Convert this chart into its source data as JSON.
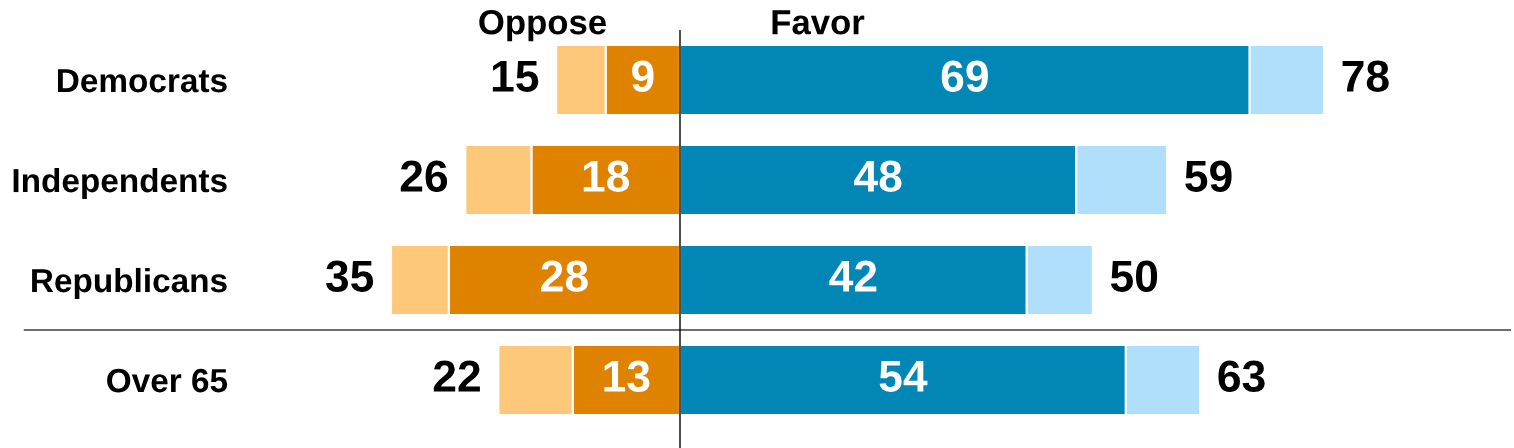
{
  "chart_data": {
    "type": "bar",
    "orientation": "horizontal",
    "stacked": true,
    "categories": [
      "Democrats",
      "Independents",
      "Republicans",
      "Over 65"
    ],
    "series": [
      {
        "color": "#df8200",
        "values": [
          -9,
          -18,
          -28,
          -13
        ]
      },
      {
        "color": "#fec87a",
        "values": [
          -6,
          -8,
          -7,
          -9
        ]
      },
      {
        "color": "#0286b6",
        "values": [
          69,
          48,
          42,
          54
        ],
        "value_labels": [
          "69",
          "48",
          "42",
          "54"
        ]
      },
      {
        "color": "#b0dffc",
        "values": [
          9,
          11,
          8,
          9
        ]
      }
    ],
    "tick_labels": "y",
    "ref_lines": [
      {
        "axis": "x",
        "value": 0,
        "color": "#000000"
      }
    ],
    "annotations": [
      "Oppose",
      "Favor",
      {
        "text": "9",
        "x": -9,
        "y": "Democrats"
      },
      {
        "text": "15",
        "x": -15,
        "y": "Democrats"
      },
      {
        "text": "78",
        "x": 78,
        "y": "Democrats"
      },
      {
        "text": "18",
        "x": -18,
        "y": "Independents"
      },
      {
        "text": "26",
        "x": -26,
        "y": "Independents"
      },
      {
        "text": "59",
        "x": 59,
        "y": "Independents"
      },
      {
        "text": "28",
        "x": -28,
        "y": "Republicans"
      },
      {
        "text": "35",
        "x": -35,
        "y": "Republicans"
      },
      {
        "text": "50",
        "x": 50,
        "y": "Republicans"
      },
      {
        "text": "13",
        "x": -13,
        "y": "Over 65"
      },
      {
        "text": "22",
        "x": -22,
        "y": "Over 65"
      },
      {
        "text": "63",
        "x": 63,
        "y": "Over 65"
      }
    ]
  }
}
